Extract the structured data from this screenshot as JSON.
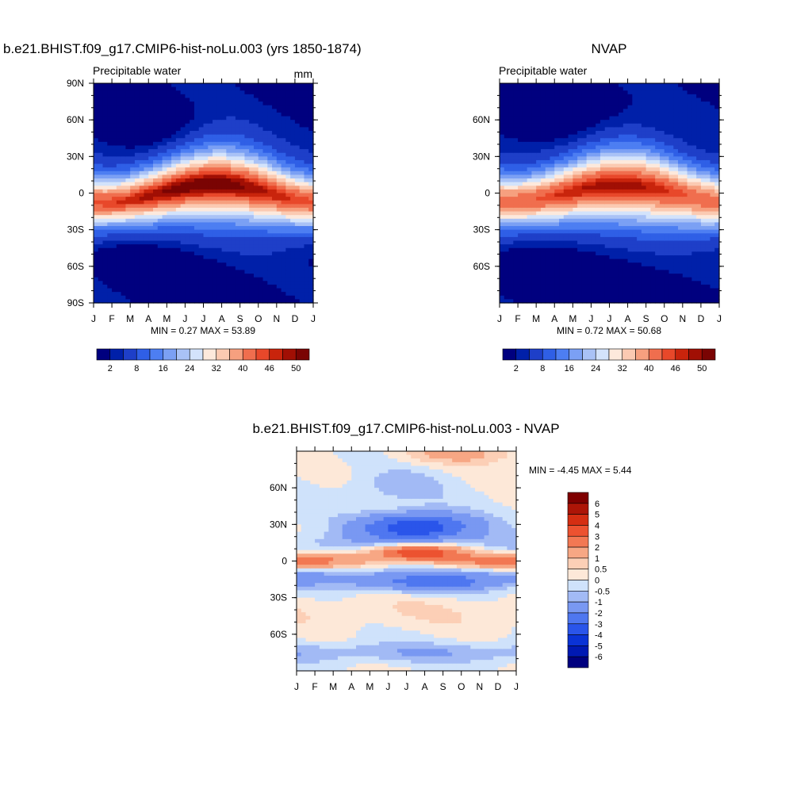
{
  "panels": [
    {
      "title": "b.e21.BHIST.f09_g17.CMIP6-hist-noLu.003 (yrs 1850-1874)",
      "left_label": "Precipitable water",
      "right_label": "mm",
      "stats": "MIN =   0.27 MAX =  53.89"
    },
    {
      "title": "NVAP",
      "left_label": "Precipitable water",
      "right_label": "",
      "stats": "MIN =   0.72 MAX =  50.68"
    },
    {
      "title": "b.e21.BHIST.f09_g17.CMIP6-hist-noLu.003 - NVAP",
      "left_label": "",
      "right_label": "",
      "stats": "MIN =  -4.45 MAX =   5.44"
    }
  ],
  "colors": {
    "abs_scale": [
      "#00007f",
      "#0020a9",
      "#1e3fc8",
      "#2f5fe6",
      "#4d7ef2",
      "#7ba0f4",
      "#a9c2f6",
      "#d3e3fb",
      "#fde9dc",
      "#fbcab2",
      "#f6a07f",
      "#f06e4e",
      "#e8482a",
      "#c9240c",
      "#a10f04",
      "#7a0403"
    ],
    "diff_scale": [
      "#00007f",
      "#0019b3",
      "#0a33d6",
      "#2a55ea",
      "#4f77f0",
      "#7998f2",
      "#a2baf5",
      "#cfe2fb",
      "#fde8d8",
      "#fccfb6",
      "#f7a784",
      "#f27853",
      "#ec5230",
      "#d52e12",
      "#ad1507",
      "#7f0000"
    ]
  },
  "chart_data": [
    {
      "type": "heatmap",
      "title": "b.e21.BHIST.f09_g17.CMIP6-hist-noLu.003 (yrs 1850-1874)",
      "subtitle_left": "Precipitable water",
      "units": "mm",
      "x_ticks": [
        "J",
        "F",
        "M",
        "A",
        "M",
        "J",
        "J",
        "A",
        "S",
        "O",
        "N",
        "D",
        "J"
      ],
      "y_ticks": [
        "90N",
        "60N",
        "30N",
        "0",
        "30S",
        "60S",
        "90S"
      ],
      "ylim": [
        -90,
        90
      ],
      "colorbar_labels": [
        "2",
        "8",
        "16",
        "24",
        "32",
        "40",
        "46",
        "50"
      ],
      "min": 0.27,
      "max": 53.89
    },
    {
      "type": "heatmap",
      "title": "NVAP",
      "subtitle_left": "Precipitable water",
      "x_ticks": [
        "J",
        "F",
        "M",
        "A",
        "M",
        "J",
        "J",
        "A",
        "S",
        "O",
        "N",
        "D",
        "J"
      ],
      "y_ticks": [
        "60N",
        "30N",
        "0",
        "30S",
        "60S"
      ],
      "ylim": [
        -90,
        90
      ],
      "colorbar_labels": [
        "2",
        "8",
        "16",
        "24",
        "32",
        "40",
        "46",
        "50"
      ],
      "min": 0.72,
      "max": 50.68
    },
    {
      "type": "heatmap",
      "title": "b.e21.BHIST.f09_g17.CMIP6-hist-noLu.003 - NVAP",
      "x_ticks": [
        "J",
        "F",
        "M",
        "A",
        "M",
        "J",
        "J",
        "A",
        "S",
        "O",
        "N",
        "D",
        "J"
      ],
      "y_ticks": [
        "60N",
        "30N",
        "0",
        "30S",
        "60S"
      ],
      "ylim": [
        -90,
        90
      ],
      "colorbar_labels": [
        "6",
        "5",
        "4",
        "3",
        "2",
        "1",
        "0.5",
        "0",
        "-0.5",
        "-1",
        "-2",
        "-3",
        "-4",
        "-5",
        "-6"
      ],
      "min": -4.45,
      "max": 5.44
    }
  ]
}
